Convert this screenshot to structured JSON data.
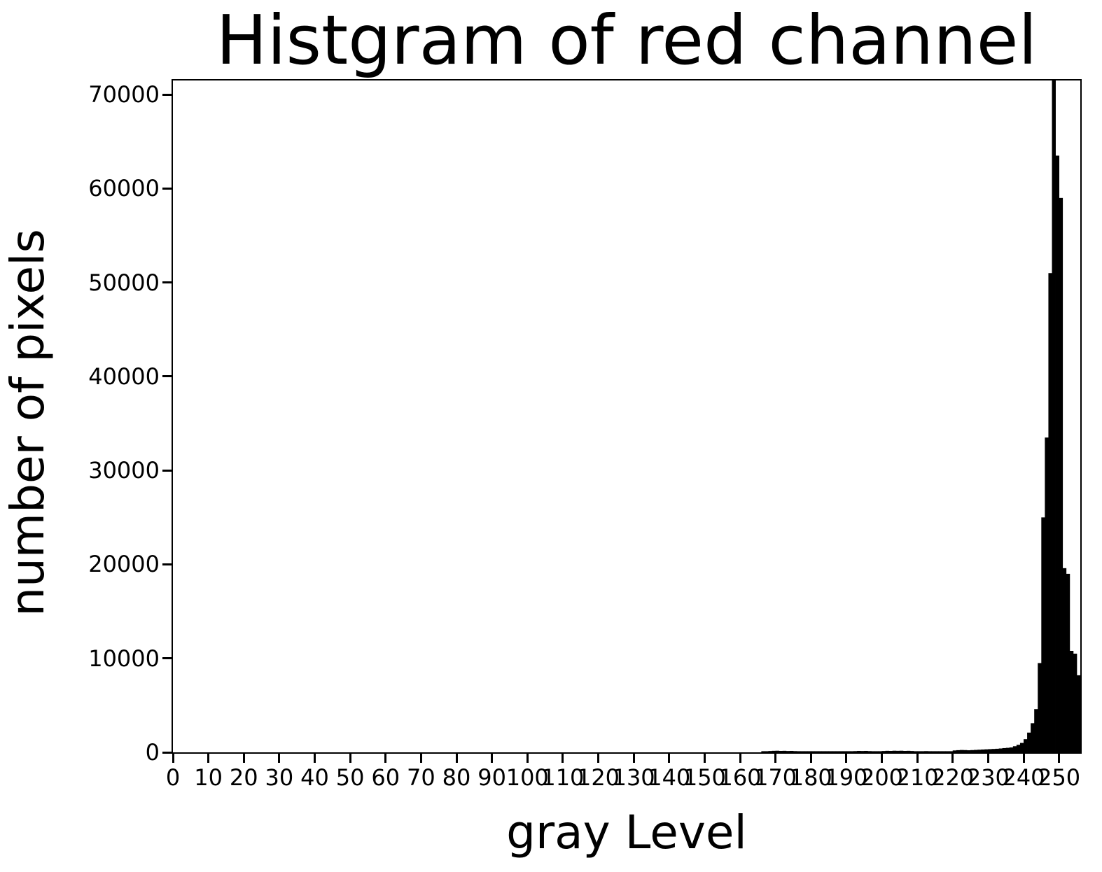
{
  "chart_data": {
    "type": "bar",
    "subtype": "histogram",
    "title": "Histgram of red channel",
    "xlabel": "gray Level",
    "ylabel": "number of pixels",
    "bar_color": "#000000",
    "axis_color": "#000000",
    "background_color": "#ffffff",
    "grid": false,
    "legend": false,
    "xlim": [
      0,
      256
    ],
    "ylim": [
      0,
      71500
    ],
    "bin_width": 1,
    "xticks": [
      0,
      10,
      20,
      30,
      40,
      50,
      60,
      70,
      80,
      90,
      100,
      110,
      120,
      130,
      140,
      150,
      160,
      170,
      180,
      190,
      200,
      210,
      220,
      230,
      240,
      250
    ],
    "yticks": [
      0,
      10000,
      20000,
      30000,
      40000,
      50000,
      60000,
      70000
    ],
    "tallest_bar_clipped_at_top": true,
    "values": [
      0,
      0,
      0,
      0,
      0,
      0,
      0,
      0,
      0,
      0,
      0,
      0,
      0,
      0,
      0,
      0,
      0,
      0,
      0,
      0,
      0,
      0,
      0,
      0,
      0,
      0,
      0,
      0,
      0,
      0,
      0,
      0,
      0,
      0,
      0,
      0,
      0,
      0,
      0,
      0,
      0,
      0,
      0,
      0,
      0,
      0,
      0,
      0,
      0,
      0,
      0,
      0,
      0,
      0,
      0,
      0,
      0,
      0,
      0,
      0,
      0,
      0,
      0,
      0,
      0,
      0,
      0,
      0,
      0,
      0,
      0,
      0,
      0,
      0,
      0,
      0,
      0,
      0,
      0,
      0,
      0,
      0,
      0,
      0,
      0,
      0,
      0,
      0,
      0,
      0,
      0,
      0,
      0,
      0,
      0,
      0,
      0,
      0,
      0,
      0,
      0,
      0,
      0,
      0,
      0,
      0,
      0,
      0,
      0,
      0,
      0,
      0,
      0,
      0,
      0,
      0,
      0,
      0,
      0,
      0,
      0,
      0,
      0,
      0,
      0,
      0,
      0,
      0,
      0,
      0,
      0,
      0,
      0,
      0,
      0,
      0,
      0,
      0,
      0,
      0,
      0,
      0,
      0,
      0,
      0,
      0,
      0,
      0,
      0,
      0,
      0,
      0,
      0,
      0,
      0,
      0,
      0,
      0,
      0,
      0,
      0,
      0,
      0,
      0,
      0,
      0,
      60,
      90,
      140,
      160,
      170,
      150,
      160,
      140,
      150,
      130,
      120,
      80,
      70,
      60,
      60,
      70,
      60,
      50,
      50,
      60,
      50,
      50,
      60,
      50,
      60,
      80,
      130,
      150,
      140,
      150,
      130,
      90,
      80,
      90,
      140,
      160,
      150,
      170,
      160,
      170,
      150,
      160,
      140,
      100,
      90,
      120,
      130,
      120,
      110,
      90,
      80,
      90,
      100,
      110,
      200,
      230,
      250,
      240,
      220,
      240,
      260,
      280,
      300,
      320,
      340,
      360,
      380,
      410,
      450,
      480,
      520,
      650,
      800,
      1000,
      1400,
      2100,
      3100,
      4600,
      9500,
      25000,
      33500,
      51000,
      72000,
      63500,
      59000,
      19600,
      19000,
      10800,
      10500,
      8200
    ]
  }
}
